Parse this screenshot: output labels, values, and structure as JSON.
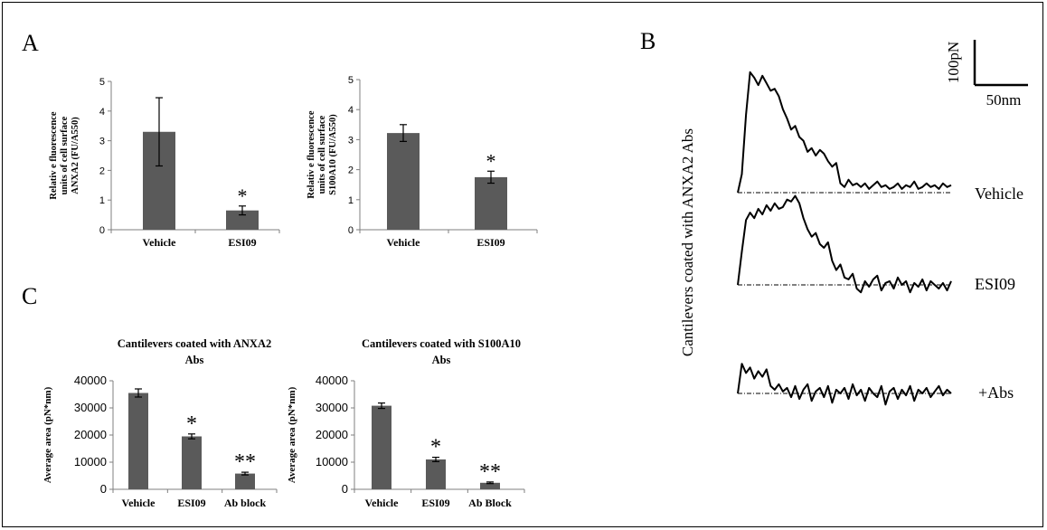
{
  "colors": {
    "bar": "#5a5a5a",
    "axis": "#7f7f7f",
    "trace": "#000000",
    "baseline": "#000000"
  },
  "panel_labels": {
    "A": "A",
    "B": "B",
    "C": "C"
  },
  "chart_data": [
    {
      "panel": "A",
      "type": "bar",
      "title": "",
      "ylabel": [
        "Relativ e fluorescence",
        "units of cell surface",
        "ANXA2 (FU/A550)"
      ],
      "xlabel": "",
      "categories": [
        "Vehicle",
        "ESI09"
      ],
      "values": [
        3.3,
        0.65
      ],
      "errors": [
        1.15,
        0.15
      ],
      "annotations": [
        "",
        "*"
      ],
      "ylim": [
        0,
        5
      ],
      "yticks": [
        "0",
        "1",
        "2",
        "3",
        "4",
        "5"
      ],
      "grid": false
    },
    {
      "panel": "A",
      "type": "bar",
      "title": "",
      "ylabel": [
        "Relativ e fluorescence",
        "units of cell surface",
        "S100A10 (FU/A550)"
      ],
      "xlabel": "",
      "categories": [
        "Vehicle",
        "ESI09"
      ],
      "values": [
        3.22,
        1.75
      ],
      "errors": [
        0.28,
        0.2
      ],
      "annotations": [
        "",
        "*"
      ],
      "ylim": [
        0,
        5
      ],
      "yticks": [
        "0",
        "1",
        "2",
        "3",
        "4",
        "5"
      ],
      "grid": false
    },
    {
      "panel": "C",
      "type": "bar",
      "title": [
        "Cantilevers coated with ANXA2",
        "Abs"
      ],
      "ylabel": "Average area (pN*nm)",
      "xlabel": "",
      "categories": [
        "Vehicle",
        "ESI09",
        "Ab block"
      ],
      "values": [
        35500,
        19500,
        5800
      ],
      "errors": [
        1500,
        900,
        500
      ],
      "annotations": [
        "",
        "*",
        "**"
      ],
      "ylim": [
        0,
        40000
      ],
      "yticks": [
        "0",
        "10000",
        "20000",
        "30000",
        "40000"
      ],
      "grid": false
    },
    {
      "panel": "C",
      "type": "bar",
      "title": [
        "Cantilevers coated with S100A10",
        "Abs"
      ],
      "ylabel": "Average area (pN*nm)",
      "xlabel": "",
      "categories": [
        "Vehicle",
        "ESI09",
        "Ab Block"
      ],
      "values": [
        30800,
        11000,
        2400
      ],
      "errors": [
        1000,
        800,
        300
      ],
      "annotations": [
        "",
        "*",
        "**"
      ],
      "ylim": [
        0,
        40000
      ],
      "yticks": [
        "0",
        "10000",
        "20000",
        "30000",
        "40000"
      ],
      "grid": false
    },
    {
      "panel": "B",
      "type": "line",
      "ylabel": "Cantilevers coated with ANXA2 Abs",
      "scale_bar": {
        "y_label": "100pN",
        "x_label": "50nm"
      },
      "series": [
        {
          "name": "Vehicle",
          "y": [
            0,
            1,
            4.2,
            6.5,
            6.2,
            5.8,
            6.3,
            5.9,
            5.5,
            5.6,
            5.2,
            4.5,
            4.0,
            3.4,
            3.6,
            3.0,
            2.8,
            2.2,
            2.4,
            2.0,
            2.3,
            2.1,
            1.7,
            1.4,
            1.6,
            0.5,
            0.3,
            0.7,
            0.4,
            0.5,
            0.3,
            0.5,
            0.2,
            0.4,
            0.6,
            0.3,
            0.4,
            0.2,
            0.3,
            0.5,
            0.2,
            0.4,
            0.3,
            0.6,
            0.2,
            0.3,
            0.5,
            0.3,
            0.4,
            0.2,
            0.5,
            0.3,
            0.4
          ]
        },
        {
          "name": "ESI09",
          "y": [
            0,
            1.8,
            3.5,
            3.9,
            3.6,
            4.1,
            3.8,
            4.3,
            4.0,
            4.4,
            4.1,
            4.2,
            4.6,
            4.5,
            4.8,
            4.4,
            3.6,
            3.0,
            2.6,
            2.8,
            2.2,
            2.0,
            2.3,
            1.3,
            0.8,
            1.1,
            0.4,
            0.3,
            0.6,
            -0.2,
            -0.4,
            0.2,
            -0.1,
            0.3,
            0.5,
            -0.3,
            0.1,
            0.2,
            -0.2,
            0.4,
            0.0,
            0.2,
            -0.4,
            0.1,
            -0.1,
            0.3,
            -0.3,
            0.2,
            0.0,
            -0.2,
            0.1,
            -0.3,
            0.2
          ]
        },
        {
          "name": "+Abs",
          "y": [
            0,
            1.6,
            1.1,
            1.4,
            0.8,
            1.2,
            0.9,
            1.3,
            0.4,
            0.2,
            0.5,
            0.1,
            0.3,
            -0.2,
            0.4,
            -0.3,
            0.2,
            0.5,
            -0.4,
            0.1,
            0.3,
            -0.2,
            0.4,
            -0.5,
            0.2,
            0.0,
            0.3,
            -0.3,
            0.5,
            -0.1,
            0.2,
            -0.4,
            0.3,
            0.0,
            -0.2,
            0.4,
            -0.6,
            0.1,
            0.3,
            -0.3,
            0.2,
            -0.1,
            0.4,
            -0.4,
            0.2,
            0.0,
            0.3,
            -0.2,
            0.1,
            0.4,
            -0.1,
            0.2,
            0.0
          ]
        }
      ]
    }
  ]
}
